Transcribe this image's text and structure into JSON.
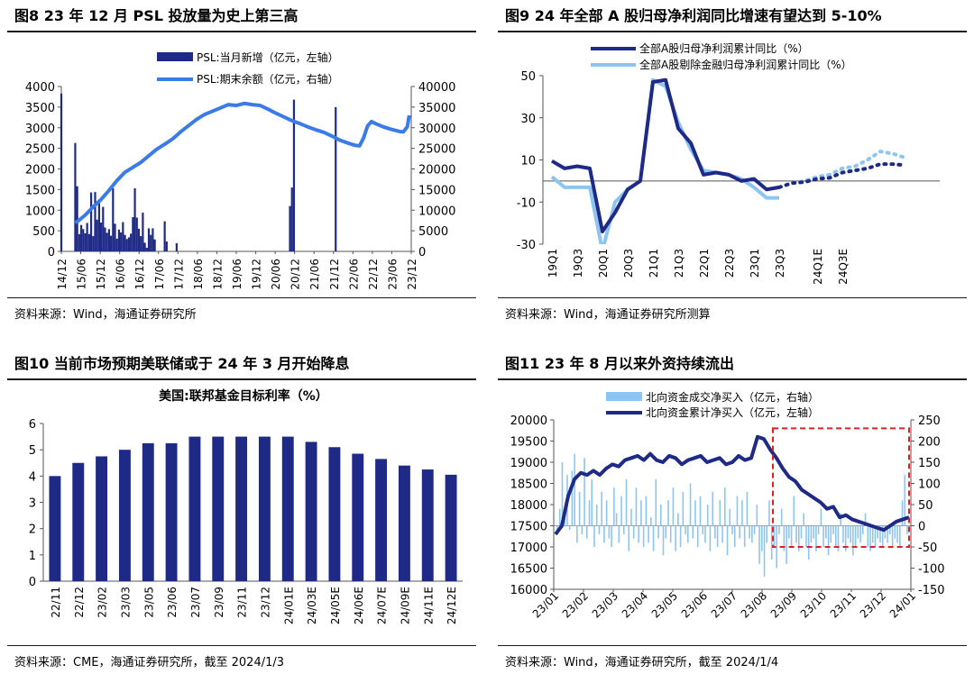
{
  "panels": {
    "fig8": {
      "title": "图8  23 年 12 月 PSL 投放量为史上第三高",
      "source": "资料来源：Wind，海通证券研究所"
    },
    "fig9": {
      "title": "图9  24 年全部 A 股归母净利润同比增速有望达到 5-10%",
      "source": "资料来源：Wind，海通证券研究所测算"
    },
    "fig10": {
      "title": "图10 当前市场预期美联储或于 24 年 3 月开始降息",
      "source": "资料来源：CME，海通证券研究所，截至 2024/1/3"
    },
    "fig11": {
      "title": "图11 23 年 8 月以来外资持续流出",
      "source": "资料来源：Wind，海通证券研究所，截至 2024/1/4"
    }
  },
  "chart_data": [
    {
      "id": "fig8",
      "type": "bar",
      "x_ticks": [
        "14/12",
        "15/06",
        "15/12",
        "16/06",
        "16/12",
        "17/06",
        "17/12",
        "18/06",
        "18/12",
        "19/06",
        "19/12",
        "20/06",
        "20/12",
        "21/06",
        "21/12",
        "22/06",
        "22/12",
        "23/06",
        "23/12"
      ],
      "y_left": {
        "min": 0,
        "max": 4000,
        "ticks": [
          0,
          500,
          1000,
          1500,
          2000,
          2500,
          3000,
          3500,
          4000
        ]
      },
      "y_right": {
        "min": 0,
        "max": 40000,
        "ticks": [
          0,
          5000,
          10000,
          15000,
          20000,
          25000,
          30000,
          35000,
          40000
        ]
      },
      "series": [
        {
          "name": "PSL:当月新增（亿元，左轴）",
          "type": "bar",
          "axis": "left",
          "color": "#1f2a86",
          "values": [
            3830,
            0,
            0,
            0,
            0,
            0,
            0,
            2630,
            1580,
            420,
            640,
            540,
            440,
            690,
            420,
            1430,
            370,
            1440,
            770,
            1240,
            700,
            1080,
            580,
            450,
            540,
            380,
            1530,
            670,
            310,
            530,
            460,
            710,
            400,
            300,
            340,
            430,
            830,
            1530,
            820,
            550,
            370,
            940,
            210,
            90,
            560,
            400,
            560,
            290,
            0,
            0,
            0,
            0,
            730,
            240,
            0,
            0,
            0,
            0,
            200,
            0,
            0,
            0,
            0,
            0,
            0,
            0,
            0,
            0,
            0,
            0,
            0,
            0,
            0,
            0,
            0,
            0,
            0,
            0,
            0,
            0,
            0,
            0,
            0,
            0,
            0,
            0,
            0,
            0,
            0,
            0,
            0,
            0,
            0,
            0,
            0,
            0,
            0,
            0,
            0,
            0,
            0,
            0,
            0,
            0,
            0,
            0,
            0,
            0,
            0,
            0,
            0,
            0,
            0,
            0,
            0,
            1100,
            1550,
            3680,
            0,
            0,
            0,
            0,
            0,
            0,
            0,
            0,
            0,
            0,
            0,
            0,
            0,
            0,
            0,
            0,
            0,
            0,
            0,
            0,
            3500
          ]
        },
        {
          "name": "PSL:期末余额（亿元，右轴）",
          "type": "line",
          "axis": "right",
          "color": "#3b7be8",
          "points": [
            [
              7,
              6900
            ],
            [
              9,
              7600
            ],
            [
              12,
              8800
            ],
            [
              16,
              10800
            ],
            [
              20,
              12600
            ],
            [
              24,
              14800
            ],
            [
              28,
              17200
            ],
            [
              32,
              19200
            ],
            [
              36,
              20400
            ],
            [
              40,
              21600
            ],
            [
              44,
              23200
            ],
            [
              48,
              24800
            ],
            [
              52,
              26000
            ],
            [
              56,
              27300
            ],
            [
              60,
              29000
            ],
            [
              64,
              30500
            ],
            [
              68,
              32000
            ],
            [
              72,
              33200
            ],
            [
              76,
              34000
            ],
            [
              80,
              34800
            ],
            [
              84,
              35600
            ],
            [
              88,
              35400
            ],
            [
              92,
              35900
            ],
            [
              96,
              35600
            ],
            [
              100,
              35400
            ],
            [
              104,
              34500
            ],
            [
              108,
              33500
            ],
            [
              112,
              32600
            ],
            [
              116,
              31700
            ],
            [
              120,
              31000
            ],
            [
              124,
              30200
            ],
            [
              128,
              29500
            ],
            [
              132,
              28900
            ],
            [
              136,
              28000
            ],
            [
              140,
              27000
            ],
            [
              144,
              26300
            ],
            [
              148,
              25700
            ],
            [
              150,
              25600
            ],
            [
              152,
              27500
            ],
            [
              154,
              30400
            ],
            [
              156,
              31500
            ],
            [
              158,
              31000
            ],
            [
              162,
              30200
            ],
            [
              166,
              29600
            ],
            [
              170,
              29100
            ],
            [
              172,
              29000
            ],
            [
              174,
              30200
            ],
            [
              175,
              33000
            ]
          ]
        }
      ]
    },
    {
      "id": "fig9",
      "type": "line",
      "x_ticks": [
        "19Q1",
        "19Q3",
        "20Q1",
        "20Q3",
        "21Q1",
        "21Q3",
        "22Q1",
        "22Q3",
        "23Q1",
        "23Q3",
        "24Q1E",
        "24Q3E"
      ],
      "y": {
        "min": -30,
        "max": 50,
        "ticks": [
          -30,
          -10,
          10,
          30,
          50
        ]
      },
      "series": [
        {
          "name": "全部A股归母净利润累计同比（%）",
          "color": "#1f2a86",
          "values": [
            9.5,
            6,
            7,
            6,
            -24,
            -15,
            -4,
            0,
            47,
            48,
            25,
            18,
            3,
            4,
            3,
            0,
            1,
            -4,
            -3
          ],
          "forecast": [
            -3,
            -1,
            -0.5,
            1,
            1.5,
            4,
            5,
            6,
            8,
            8,
            7.5
          ]
        },
        {
          "name": "全部A股剔除金融归母净利润累计同比（%）",
          "color": "#8ec5f0",
          "values": [
            2,
            -3,
            -3,
            -3,
            -33,
            -10,
            -4,
            0,
            48,
            45,
            28,
            15,
            5,
            4,
            3,
            1,
            -3,
            -8,
            -8
          ],
          "forecast": [
            -3,
            -1,
            0,
            2,
            3,
            6,
            7,
            10,
            14,
            13,
            11
          ]
        }
      ]
    },
    {
      "id": "fig10",
      "type": "bar",
      "title": "美国:联邦基金目标利率（%）",
      "categories": [
        "22/11",
        "22/12",
        "23/02",
        "23/03",
        "23/05",
        "23/06",
        "23/07",
        "23/09",
        "23/11",
        "23/12",
        "24/01E",
        "24/03E",
        "24/05E",
        "24/06E",
        "24/07E",
        "24/09E",
        "24/11E",
        "24/12E"
      ],
      "values": [
        4.0,
        4.5,
        4.75,
        5.0,
        5.25,
        5.25,
        5.5,
        5.5,
        5.5,
        5.5,
        5.5,
        5.3,
        5.1,
        4.85,
        4.65,
        4.4,
        4.25,
        4.05
      ],
      "ylim": [
        0,
        6
      ],
      "y_ticks": [
        0,
        1,
        2,
        3,
        4,
        5,
        6
      ],
      "color": "#1f2a86"
    },
    {
      "id": "fig11",
      "type": "bar",
      "x_ticks": [
        "23/01",
        "23/02",
        "23/03",
        "23/04",
        "23/05",
        "23/06",
        "23/07",
        "23/08",
        "23/09",
        "23/10",
        "23/11",
        "23/12",
        "24/01"
      ],
      "y_left": {
        "min": 16000,
        "max": 20000,
        "ticks": [
          16000,
          16500,
          17000,
          17500,
          18000,
          18500,
          19000,
          19500,
          20000
        ]
      },
      "y_right": {
        "min": -150,
        "max": 250,
        "ticks": [
          -150,
          -100,
          -50,
          0,
          50,
          100,
          150,
          200,
          250
        ]
      },
      "highlight_box": {
        "x_from": "23/08",
        "x_to": "24/01",
        "y_from": -50,
        "y_to": 230
      },
      "series": [
        {
          "name": "北向资金成交净买入（亿元，右轴）",
          "type": "bar",
          "axis": "right",
          "color": "#8ec5f0",
          "values": [
            -20,
            40,
            150,
            30,
            120,
            -10,
            130,
            170,
            -40,
            80,
            -20,
            160,
            -30,
            60,
            110,
            -50,
            50,
            -20,
            80,
            -40,
            60,
            -30,
            -50,
            90,
            30,
            -40,
            70,
            -20,
            110,
            -60,
            40,
            -30,
            90,
            -40,
            60,
            -50,
            70,
            -40,
            20,
            -60,
            110,
            -30,
            50,
            -70,
            -30,
            60,
            -40,
            90,
            -60,
            30,
            -50,
            80,
            -20,
            -40,
            100,
            -30,
            60,
            -50,
            70,
            -20,
            -40,
            50,
            -60,
            80,
            -30,
            -50,
            60,
            -40,
            90,
            -70,
            40,
            -20,
            -50,
            70,
            -30,
            60,
            -50,
            80,
            -30,
            -40,
            -20,
            50,
            -90,
            -60,
            -120,
            -40,
            60,
            -80,
            -50,
            -100,
            -20,
            40,
            -60,
            -90,
            -30,
            -50,
            70,
            -40,
            -60,
            -30,
            30,
            -50,
            -80,
            -40,
            -30,
            -60,
            -20,
            40,
            -50,
            -30,
            -70,
            -40,
            -20,
            -50,
            -60,
            30,
            -40,
            -60,
            -30,
            -40,
            -70,
            -50,
            -30,
            -40,
            -20,
            30,
            -50,
            -60,
            -40,
            -50,
            -30,
            -40,
            -50,
            -30,
            -40,
            -20,
            -50,
            -30,
            -40,
            -50,
            60,
            120,
            -20
          ]
        },
        {
          "name": "北向资金累计净买入（亿元，左轴）",
          "type": "line",
          "axis": "left",
          "color": "#1f2a86",
          "values": [
            17300,
            17500,
            18200,
            18600,
            18750,
            18700,
            18800,
            18700,
            18850,
            18950,
            18900,
            19050,
            19100,
            19150,
            19050,
            19200,
            19050,
            19000,
            19150,
            19100,
            18950,
            19050,
            19100,
            19150,
            19000,
            19050,
            19100,
            18950,
            19000,
            19150,
            19050,
            19100,
            19600,
            19550,
            19300,
            19100,
            18850,
            18650,
            18550,
            18350,
            18250,
            18150,
            18050,
            17900,
            17950,
            17700,
            17750,
            17650,
            17600,
            17550,
            17500,
            17450,
            17400,
            17500,
            17600,
            17650,
            17700
          ]
        }
      ]
    }
  ]
}
